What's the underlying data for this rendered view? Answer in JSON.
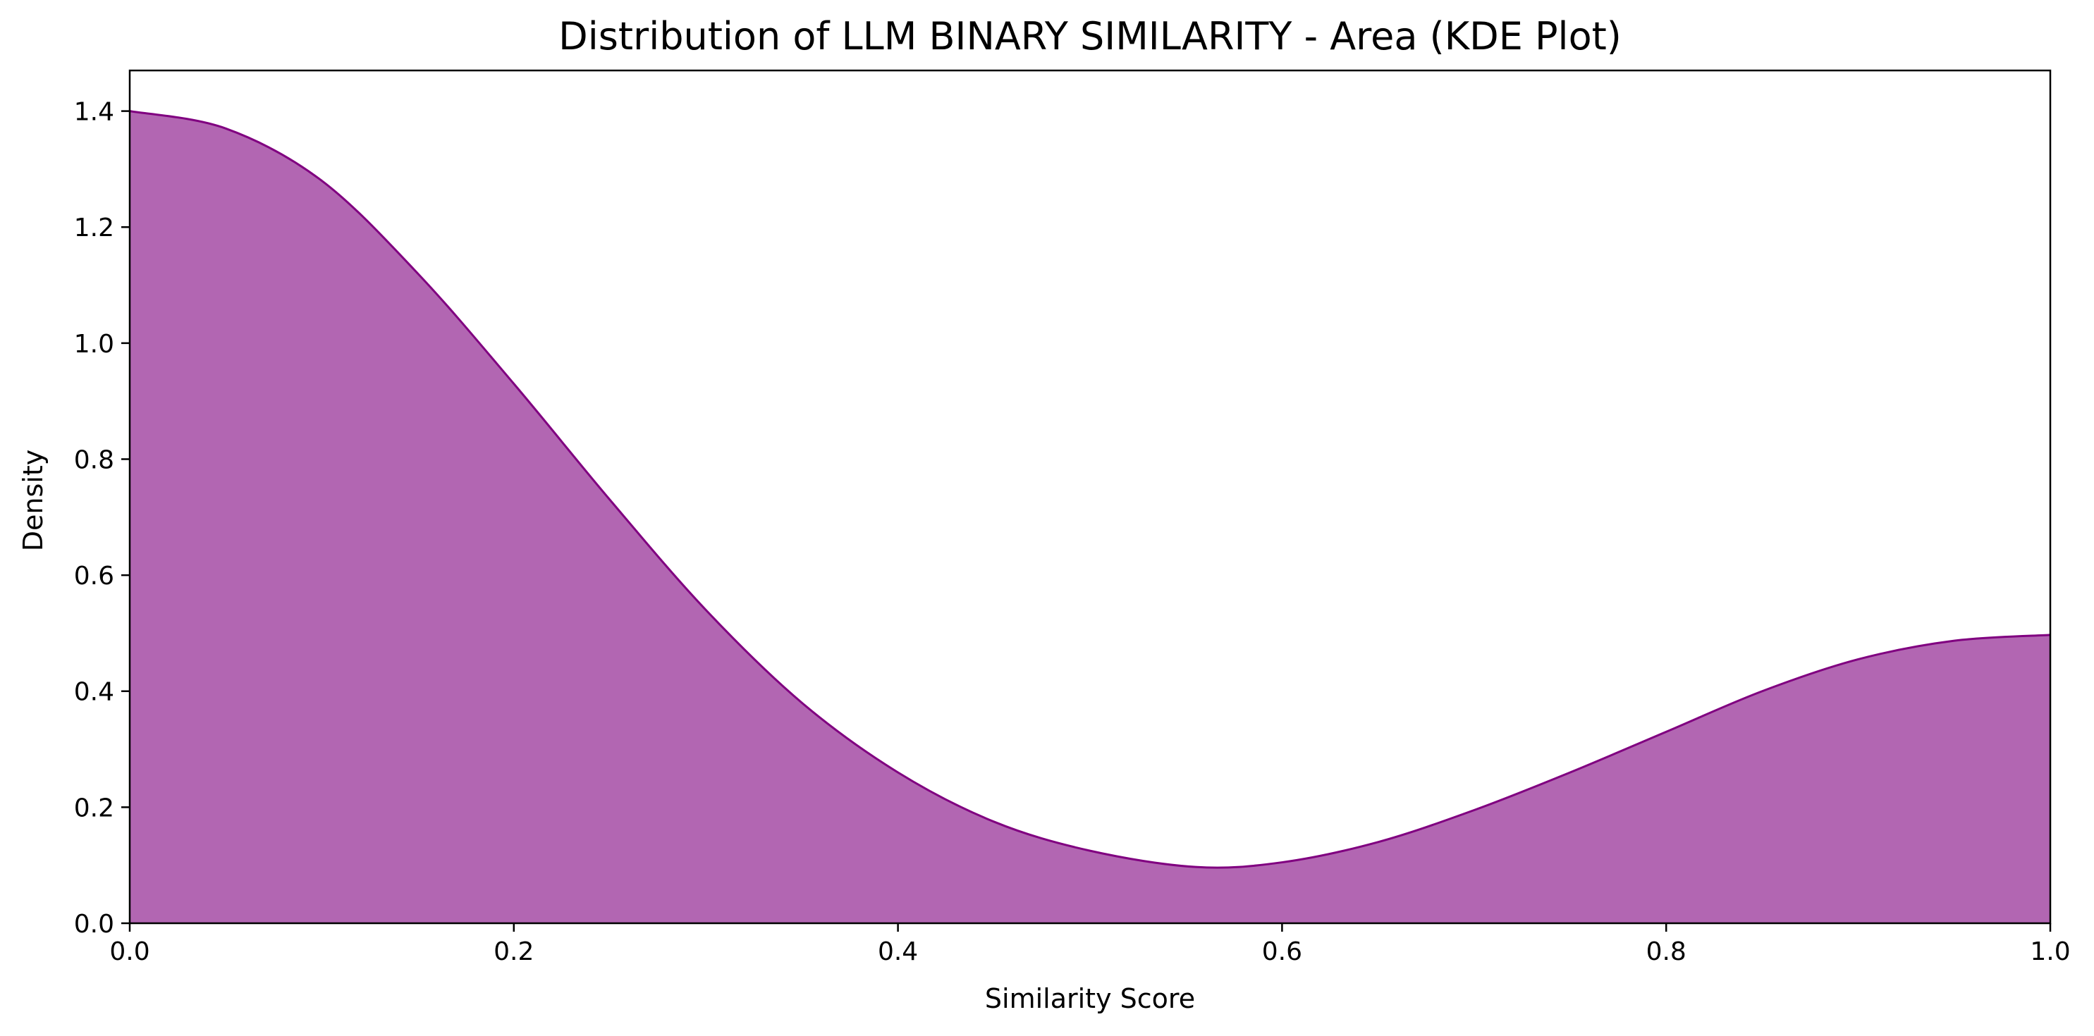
{
  "chart_data": {
    "type": "area",
    "title": "Distribution of LLM BINARY SIMILARITY - Area (KDE Plot)",
    "xlabel": "Similarity Score",
    "ylabel": "Density",
    "xlim": [
      0.0,
      1.0
    ],
    "ylim": [
      0.0,
      1.47
    ],
    "xticks": [
      0.0,
      0.2,
      0.4,
      0.6,
      0.8,
      1.0
    ],
    "xtick_labels": [
      "0.0",
      "0.2",
      "0.4",
      "0.6",
      "0.8",
      "1.0"
    ],
    "yticks": [
      0.0,
      0.2,
      0.4,
      0.6,
      0.8,
      1.0,
      1.2,
      1.4
    ],
    "ytick_labels": [
      "0.0",
      "0.2",
      "0.4",
      "0.6",
      "0.8",
      "1.0",
      "1.2",
      "1.4"
    ],
    "grid": false,
    "fill_color": "#b266b2",
    "line_color": "#800080",
    "series": [
      {
        "name": "LLM BINARY SIMILARITY",
        "x": [
          0.0,
          0.05,
          0.1,
          0.15,
          0.2,
          0.25,
          0.3,
          0.35,
          0.4,
          0.45,
          0.5,
          0.555,
          0.6,
          0.65,
          0.7,
          0.75,
          0.8,
          0.85,
          0.9,
          0.95,
          1.0
        ],
        "y": [
          1.4,
          1.37,
          1.28,
          1.12,
          0.93,
          0.73,
          0.54,
          0.38,
          0.26,
          0.175,
          0.125,
          0.097,
          0.105,
          0.14,
          0.195,
          0.26,
          0.33,
          0.4,
          0.455,
          0.487,
          0.497
        ]
      }
    ]
  }
}
